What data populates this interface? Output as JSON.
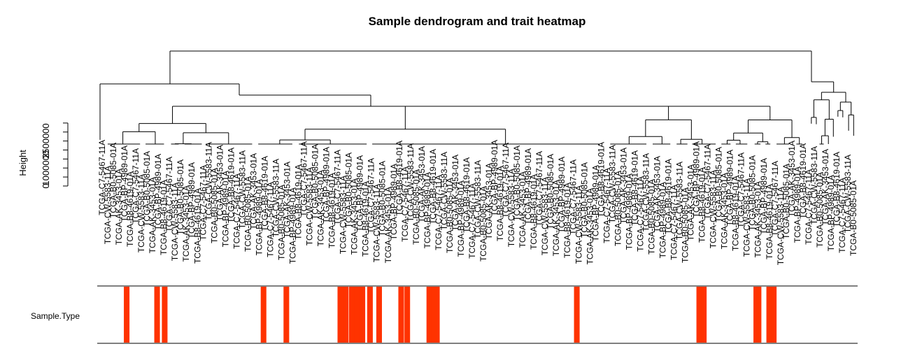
{
  "chart_data": {
    "type": "dendrogram",
    "title": "Sample dendrogram and trait heatmap",
    "ylabel": "Height",
    "y_ticks": [
      0,
      1000000,
      2500000
    ],
    "y_tick_labels": [
      "0",
      "1000000",
      "2500000"
    ],
    "ylim": [
      0,
      7500000
    ],
    "leaf_labels": [
      "TCGA-C7-5467-11A",
      "TCGA-CW-5583-11A",
      "TCGA-B0-5085-01A",
      "TCGA-AK-3453-01A",
      "TCGA-BP-4989-01A",
      "TCGA-B8-4619-01A"
    ],
    "trait_heatmap": {
      "label": "Sample.Type",
      "color_tumor": "#ffffff",
      "color_normal": "#ff3300",
      "normal_positions": [
        0.035,
        0.075,
        0.085,
        0.215,
        0.245,
        0.316,
        0.323,
        0.331,
        0.338,
        0.341,
        0.345,
        0.355,
        0.367,
        0.396,
        0.404,
        0.433,
        0.436,
        0.439,
        0.443,
        0.627,
        0.788,
        0.791,
        0.794,
        0.863,
        0.866,
        0.88,
        0.883,
        0.886
      ]
    }
  }
}
